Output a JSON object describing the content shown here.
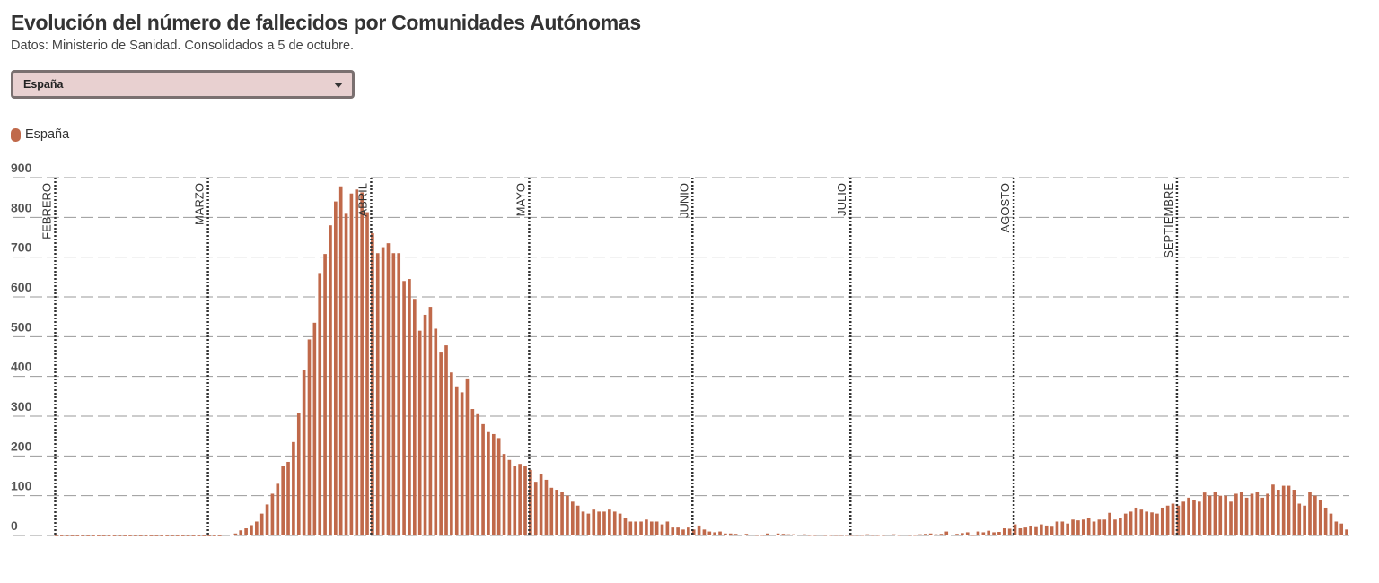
{
  "header": {
    "title": "Evolución del número de fallecidos por Comunidades Autónomas",
    "subtitle": "Datos: Ministerio de Sanidad. Consolidados a 5 de octubre."
  },
  "selector": {
    "value": "España"
  },
  "colors": {
    "bar": "#c0694a",
    "grid": "#9a9a9a",
    "month_line": "#333333",
    "axis_text": "#555555"
  },
  "chart_data": {
    "type": "bar",
    "series": [
      {
        "name": "España",
        "start_date": "2020-02-01",
        "values": [
          0,
          0,
          0,
          0,
          0,
          0,
          0,
          0,
          0,
          0,
          0,
          0,
          0,
          0,
          0,
          0,
          0,
          0,
          0,
          0,
          0,
          0,
          0,
          0,
          0,
          0,
          0,
          0,
          0,
          0,
          0,
          0,
          2,
          2,
          5,
          13,
          18,
          26,
          35,
          55,
          78,
          105,
          130,
          175,
          185,
          235,
          308,
          417,
          493,
          535,
          660,
          708,
          780,
          840,
          878,
          809,
          860,
          870,
          863,
          813,
          760,
          710,
          725,
          735,
          710,
          710,
          640,
          645,
          595,
          515,
          555,
          575,
          520,
          460,
          478,
          410,
          375,
          360,
          395,
          318,
          305,
          280,
          260,
          255,
          245,
          205,
          190,
          175,
          180,
          175,
          165,
          135,
          155,
          140,
          120,
          115,
          110,
          100,
          85,
          75,
          60,
          55,
          65,
          60,
          60,
          65,
          60,
          55,
          45,
          35,
          35,
          35,
          40,
          35,
          35,
          28,
          35,
          20,
          20,
          15,
          20,
          15,
          25,
          15,
          10,
          8,
          10,
          5,
          5,
          4,
          2,
          4,
          2,
          1,
          1,
          5,
          2,
          5,
          4,
          3,
          3,
          2,
          3,
          1,
          1,
          2,
          1,
          1,
          1,
          1,
          1,
          1,
          1,
          1,
          3,
          1,
          1,
          1,
          2,
          3,
          1,
          2,
          1,
          1,
          3,
          4,
          5,
          3,
          4,
          10,
          2,
          4,
          6,
          8,
          1,
          10,
          8,
          12,
          8,
          9,
          18,
          17,
          28,
          18,
          20,
          24,
          21,
          28,
          25,
          22,
          35,
          35,
          30,
          40,
          38,
          40,
          45,
          35,
          40,
          40,
          57,
          40,
          45,
          55,
          60,
          70,
          65,
          60,
          58,
          55,
          70,
          75,
          80,
          75,
          85,
          95,
          90,
          85,
          108,
          100,
          110,
          100,
          100,
          85,
          105,
          110,
          95,
          105,
          110,
          95,
          105,
          128,
          115,
          125,
          125,
          115,
          80,
          75,
          110,
          100,
          90,
          70,
          55,
          35,
          30,
          15
        ]
      }
    ],
    "months": [
      "FEBRERO",
      "MARZO",
      "ABRIL",
      "MAYO",
      "JUNIO",
      "JULIO",
      "AGOSTO",
      "SEPTIEMBRE"
    ],
    "yticks": [
      0,
      100,
      200,
      300,
      400,
      500,
      600,
      700,
      800,
      900
    ],
    "ylim": [
      0,
      900
    ],
    "grid": true,
    "legend": "top-left"
  }
}
